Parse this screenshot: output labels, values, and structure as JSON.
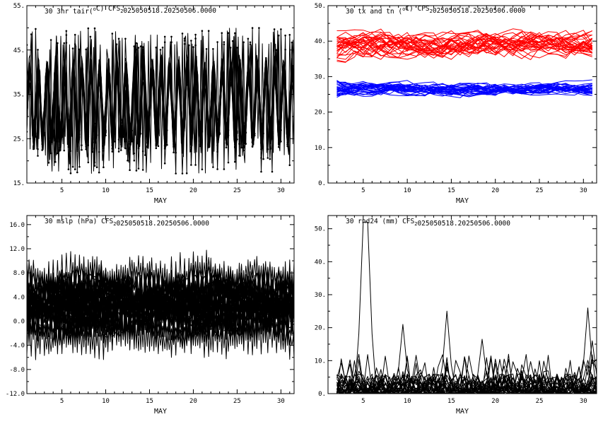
{
  "chart_data": [
    {
      "type": "line",
      "title_parts": [
        "30 3hr tair(",
        "o",
        "C) CFS",
        "2",
        "025050518.20250506.0000"
      ],
      "xlabel": "MAY",
      "xlim": [
        1,
        31.5
      ],
      "ylim": [
        15,
        55
      ],
      "x_ticks": [
        5,
        10,
        15,
        20,
        25,
        30
      ],
      "x_tick_labels": [
        "5",
        "10",
        "15",
        "20",
        "25",
        "30"
      ],
      "y_ticks": [
        15,
        25,
        35,
        45,
        55
      ],
      "y_tick_labels": [
        "15.",
        "25.",
        "35.",
        "45.",
        "55."
      ],
      "y_minor": 5,
      "ensemble": {
        "members": 30,
        "kind": "diurnal",
        "step_days": 0.125,
        "mean": 33,
        "amplitude_range": [
          6,
          9
        ],
        "peak_range": [
          45,
          50
        ],
        "trough_range": [
          17,
          28
        ],
        "color": "#000000",
        "markers": true
      }
    },
    {
      "type": "line",
      "title_parts": [
        "30 tx and tn (",
        "o",
        "C) CFS",
        "2",
        "025050518.20250506.0000"
      ],
      "xlabel": "MAY",
      "xlim": [
        1,
        31.5
      ],
      "ylim": [
        0,
        50
      ],
      "x_ticks": [
        5,
        10,
        15,
        20,
        25,
        30
      ],
      "x_tick_labels": [
        "5",
        "10",
        "15",
        "20",
        "25",
        "30"
      ],
      "y_ticks": [
        0,
        10,
        20,
        30,
        40,
        50
      ],
      "y_tick_labels": [
        "0.",
        "10.",
        "20.",
        "30.",
        "40.",
        "50."
      ],
      "y_minor": 5,
      "series": [
        {
          "name": "tx",
          "members": 30,
          "mean": 39,
          "spread": 4.5,
          "range": [
            30,
            47
          ],
          "color": "#ff0000"
        },
        {
          "name": "tn",
          "members": 30,
          "mean": 26.5,
          "spread": 2.2,
          "range": [
            16.5,
            31
          ],
          "color": "#0000ff"
        }
      ],
      "ensemble": {
        "kind": "daily",
        "x_start": 2,
        "x_end": 31.5,
        "step_days": 1
      }
    },
    {
      "type": "line",
      "title_parts": [
        "30 mslp (hPa) CFS",
        "2",
        "025050518.20250506.0000"
      ],
      "xlabel": "MAY",
      "xlim": [
        1,
        31.5
      ],
      "ylim": [
        -12,
        17.5
      ],
      "x_ticks": [
        5,
        10,
        15,
        20,
        25,
        30
      ],
      "x_tick_labels": [
        "5",
        "10",
        "15",
        "20",
        "25",
        "30"
      ],
      "y_ticks": [
        -12,
        -8,
        -4,
        0,
        4,
        8,
        12,
        16
      ],
      "y_tick_labels": [
        "-12.0",
        "-8.0",
        "-4.0",
        "0.0",
        "4.0",
        "8.0",
        "12.0",
        "16.0"
      ],
      "y_minor": 2,
      "ensemble": {
        "members": 30,
        "kind": "semidiurnal",
        "step_days": 0.25,
        "mean": 2.5,
        "amplitude_range": [
          2,
          5
        ],
        "range": [
          -11.5,
          16.5
        ],
        "color": "#000000"
      }
    },
    {
      "type": "line",
      "title_parts": [
        "30 rnd24 (mm) CFS",
        "2",
        "025050518.20250506.0000"
      ],
      "xlabel": "MAY",
      "xlim": [
        1,
        31.5
      ],
      "ylim": [
        0,
        54
      ],
      "x_ticks": [
        5,
        10,
        15,
        20,
        25,
        30
      ],
      "x_tick_labels": [
        "5",
        "10",
        "15",
        "20",
        "25",
        "30"
      ],
      "y_ticks": [
        0,
        10,
        20,
        30,
        40,
        50
      ],
      "y_tick_labels": [
        "0.",
        "10.",
        "20.",
        "30.",
        "40.",
        "50."
      ],
      "y_minor": 5,
      "ensemble": {
        "members": 30,
        "kind": "precip",
        "x_start": 2,
        "x_end": 31.5,
        "step_days": 0.5,
        "baseline_max": 6,
        "notable_peaks": [
          {
            "x": 5.2,
            "y": 52
          },
          {
            "x": 9.7,
            "y": 21
          },
          {
            "x": 14.4,
            "y": 25
          },
          {
            "x": 30.3,
            "y": 26
          },
          {
            "x": 18.6,
            "y": 16.5
          },
          {
            "x": 30.8,
            "y": 16
          }
        ],
        "color": "#000000"
      }
    }
  ]
}
